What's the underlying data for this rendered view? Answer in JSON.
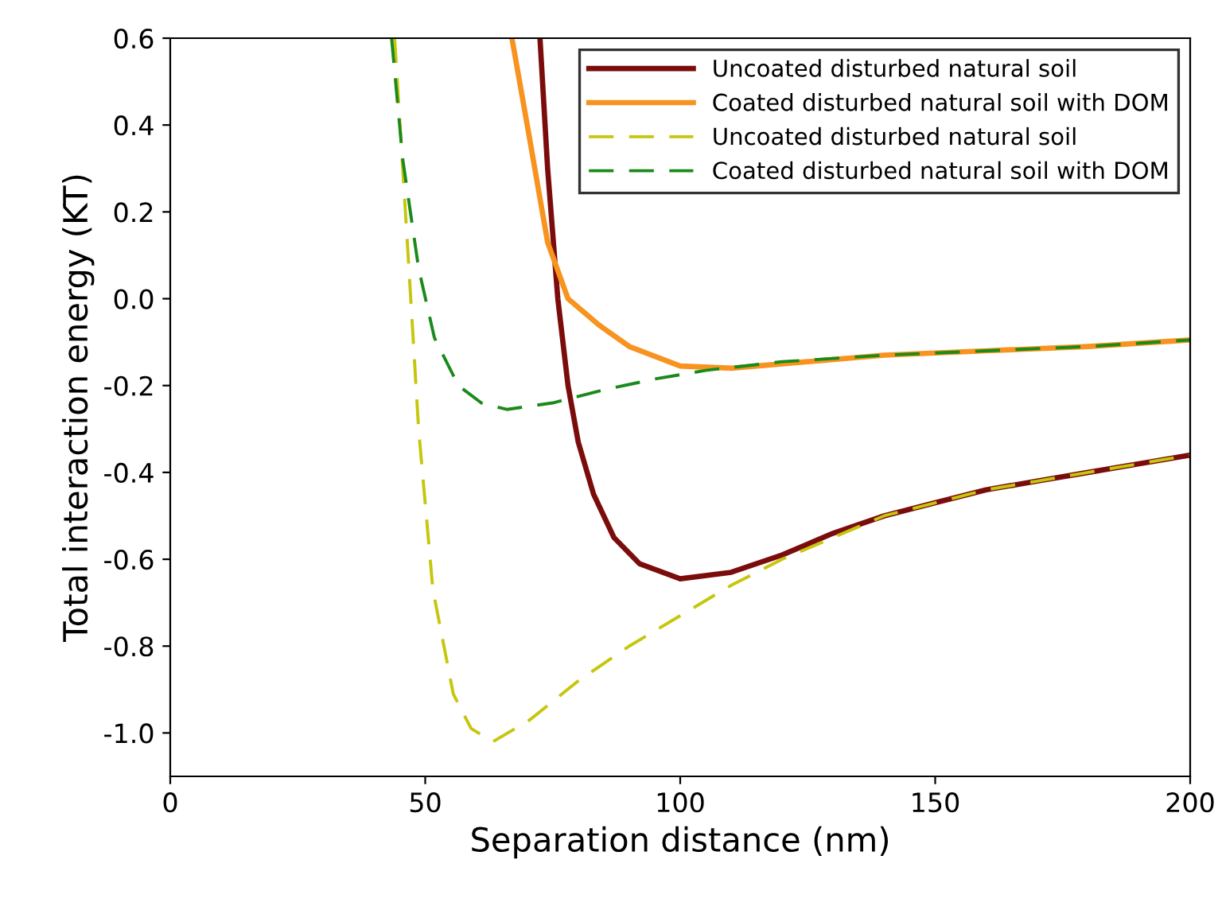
{
  "chart_data": {
    "type": "line",
    "xlabel": "Separation distance (nm)",
    "ylabel": "Total interaction energy (KT)",
    "xlim": [
      0,
      200
    ],
    "xticks": [
      0,
      50,
      100,
      150,
      200
    ],
    "ylim": [
      -1.1,
      0.6
    ],
    "yticks": [
      {
        "value": -1.0,
        "label": "-1.0"
      },
      {
        "value": -0.8,
        "label": "-0.8"
      },
      {
        "value": -0.6,
        "label": "-0.6"
      },
      {
        "value": -0.4,
        "label": "-0.4"
      },
      {
        "value": -0.2,
        "label": "-0.2"
      },
      {
        "value": 0.0,
        "label": "0.0"
      },
      {
        "value": 0.2,
        "label": "0.2"
      },
      {
        "value": 0.4,
        "label": "0.4"
      },
      {
        "value": 0.6,
        "label": "0.6"
      }
    ],
    "grid": false,
    "legend": "top right",
    "series": [
      {
        "name": "Uncoated disturbed natural soil",
        "color": "#7b0c0c",
        "line_style": "solid",
        "x": [
          72.5,
          74,
          76,
          78,
          80,
          83,
          87,
          92,
          100,
          110,
          120,
          130,
          140,
          150,
          160,
          170,
          180,
          190,
          200
        ],
        "values": [
          0.6,
          0.3,
          0.0,
          -0.2,
          -0.33,
          -0.45,
          -0.55,
          -0.61,
          -0.645,
          -0.63,
          -0.59,
          -0.54,
          -0.5,
          -0.47,
          -0.44,
          -0.42,
          -0.4,
          -0.38,
          -0.36
        ]
      },
      {
        "name": "Coated disturbed natural soil with DOM",
        "color": "#f7931e",
        "line_style": "solid",
        "x": [
          67,
          70,
          74,
          78,
          84,
          90,
          100,
          110,
          120,
          140,
          160,
          180,
          200
        ],
        "values": [
          0.6,
          0.4,
          0.13,
          0.0,
          -0.06,
          -0.11,
          -0.155,
          -0.16,
          -0.15,
          -0.13,
          -0.12,
          -0.11,
          -0.095
        ]
      },
      {
        "name": "Uncoated disturbed natural soil",
        "color": "#c6c60c",
        "line_style": "dashed",
        "x": [
          44,
          46.8,
          48.7,
          51.5,
          55.5,
          59,
          63.3,
          70.5,
          80,
          90,
          100,
          110,
          120,
          130,
          140,
          150,
          160,
          170,
          180,
          190,
          200
        ],
        "values": [
          0.6,
          0.07,
          -0.3,
          -0.67,
          -0.91,
          -0.99,
          -1.02,
          -0.97,
          -0.88,
          -0.8,
          -0.73,
          -0.66,
          -0.6,
          -0.55,
          -0.5,
          -0.47,
          -0.44,
          -0.42,
          -0.4,
          -0.38,
          -0.36
        ]
      },
      {
        "name": "Coated disturbed natural soil with DOM",
        "color": "#1a8a1a",
        "line_style": "dashed",
        "x": [
          43.4,
          45.6,
          48.7,
          51.8,
          56.5,
          61,
          66,
          75,
          85,
          95,
          105,
          120,
          140,
          160,
          180,
          200
        ],
        "values": [
          0.6,
          0.32,
          0.07,
          -0.09,
          -0.2,
          -0.24,
          -0.255,
          -0.24,
          -0.21,
          -0.185,
          -0.165,
          -0.145,
          -0.13,
          -0.12,
          -0.11,
          -0.095
        ]
      }
    ]
  }
}
